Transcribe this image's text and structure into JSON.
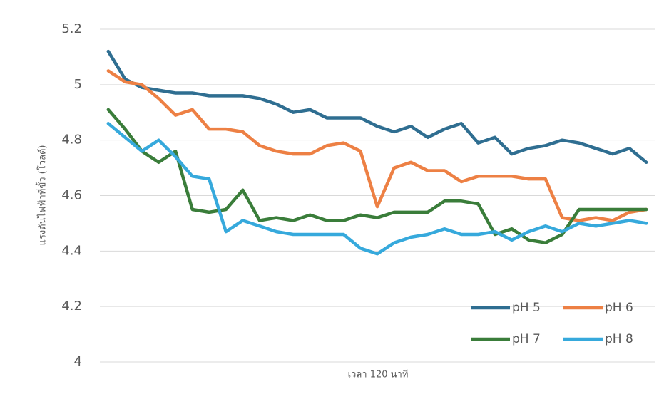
{
  "chart_data": {
    "type": "line",
    "x_label": "เวลา 120 นาที",
    "y_label": "แรงดันไฟฟ้าที่ขั้ว (โวลต์)",
    "categories": [
      null,
      null,
      null,
      null,
      null,
      null,
      null,
      null,
      null,
      null,
      null,
      null,
      null,
      null,
      null,
      null,
      null,
      null,
      null,
      null,
      null,
      null,
      null,
      null,
      null,
      null,
      null,
      null,
      null,
      null,
      null,
      null,
      null
    ],
    "ylim": [
      4,
      5.2
    ],
    "yticks": [
      4,
      4.2,
      4.4,
      4.6,
      4.8,
      5,
      5.2
    ],
    "grid": true,
    "legend": "bottom-right",
    "series": [
      {
        "name": "pH 5",
        "color": "#2f6e91",
        "values": [
          5.12,
          5.02,
          4.99,
          4.98,
          4.97,
          4.97,
          4.96,
          4.96,
          4.96,
          4.95,
          4.93,
          4.9,
          4.91,
          4.88,
          4.88,
          4.88,
          4.85,
          4.83,
          4.85,
          4.81,
          4.84,
          4.86,
          4.79,
          4.81,
          4.75,
          4.77,
          4.78,
          4.8,
          4.79,
          4.77,
          4.75,
          4.77,
          4.72
        ]
      },
      {
        "name": "pH 6",
        "color": "#ed8044",
        "values": [
          5.05,
          5.01,
          5.0,
          4.95,
          4.89,
          4.91,
          4.84,
          4.84,
          4.83,
          4.78,
          4.76,
          4.75,
          4.75,
          4.78,
          4.79,
          4.76,
          4.56,
          4.7,
          4.72,
          4.69,
          4.69,
          4.65,
          4.67,
          4.67,
          4.67,
          4.66,
          4.66,
          4.52,
          4.51,
          4.52,
          4.51,
          4.54,
          4.55
        ]
      },
      {
        "name": "pH 7",
        "color": "#3a7d3a",
        "values": [
          4.91,
          4.84,
          4.76,
          4.72,
          4.76,
          4.55,
          4.54,
          4.55,
          4.62,
          4.51,
          4.52,
          4.51,
          4.53,
          4.51,
          4.51,
          4.53,
          4.52,
          4.54,
          4.54,
          4.54,
          4.58,
          4.58,
          4.57,
          4.46,
          4.48,
          4.44,
          4.43,
          4.46,
          4.55,
          4.55,
          4.55,
          4.55,
          4.55
        ]
      },
      {
        "name": "pH 8",
        "color": "#36a9dc",
        "values": [
          4.86,
          4.81,
          4.76,
          4.8,
          4.74,
          4.67,
          4.66,
          4.47,
          4.51,
          4.49,
          4.47,
          4.46,
          4.46,
          4.46,
          4.46,
          4.41,
          4.39,
          4.43,
          4.45,
          4.46,
          4.48,
          4.46,
          4.46,
          4.47,
          4.44,
          4.47,
          4.49,
          4.47,
          4.5,
          4.49,
          4.5,
          4.51,
          4.5
        ]
      }
    ]
  }
}
